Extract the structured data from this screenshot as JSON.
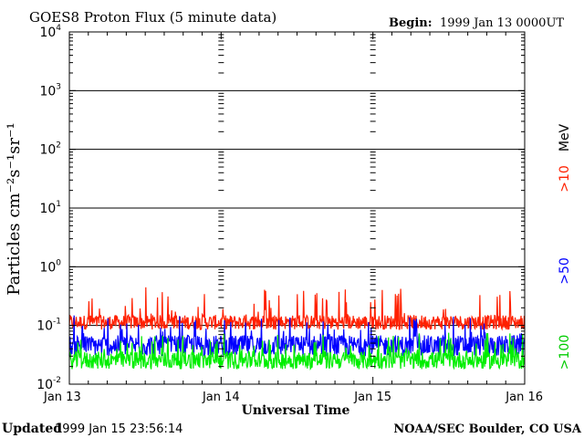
{
  "chart_data": {
    "type": "line",
    "title": "GOES8 Proton Flux (5 minute data)",
    "begin_label": "Begin:",
    "begin_value": "1999 Jan 13 0000UT",
    "xlabel": "Universal Time",
    "ylabel": "Particles cm⁻²s⁻¹sr⁻¹",
    "y_scale": "log",
    "ylim": [
      0.01,
      10000
    ],
    "y_ticks": [
      {
        "base": "10",
        "exp": "-2",
        "value": 0.01
      },
      {
        "base": "10",
        "exp": "-1",
        "value": 0.1
      },
      {
        "base": "10",
        "exp": "0",
        "value": 1
      },
      {
        "base": "10",
        "exp": "1",
        "value": 10
      },
      {
        "base": "10",
        "exp": "2",
        "value": 100
      },
      {
        "base": "10",
        "exp": "3",
        "value": 1000
      },
      {
        "base": "10",
        "exp": "4",
        "value": 10000
      }
    ],
    "x_ticks": [
      "Jan 13",
      "Jan 14",
      "Jan 15",
      "Jan 16"
    ],
    "xlim_days": [
      0,
      3
    ],
    "series": [
      {
        "name": ">10",
        "unit": "MeV",
        "color": "#ff2000",
        "typical": 0.13,
        "low": 0.085,
        "high": 0.45
      },
      {
        "name": ">50",
        "unit": "",
        "color": "#0000ff",
        "typical": 0.055,
        "low": 0.03,
        "high": 0.15
      },
      {
        "name": ">100",
        "unit": "",
        "color": "#00ee00",
        "typical": 0.03,
        "low": 0.018,
        "high": 0.075
      }
    ],
    "legend_position": "right"
  },
  "footer": {
    "updated_label": "Updated",
    "updated_value": "1999 Jan 15 23:56:14",
    "source": "NOAA/SEC Boulder, CO USA"
  }
}
